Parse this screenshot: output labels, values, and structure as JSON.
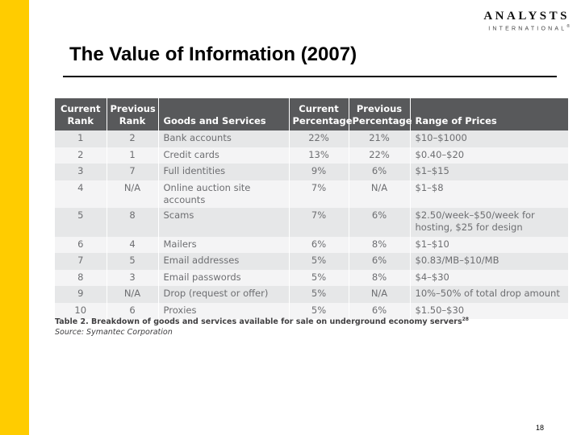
{
  "logo": {
    "main": "ANALYSTS",
    "sub": "INTERNATIONAL",
    "tm": "®"
  },
  "title": "The Value of Information (2007)",
  "table": {
    "headers": [
      "Current Rank",
      "Previous Rank",
      "Goods and Services",
      "Current Percentage",
      "Previous Percentage",
      "Range of Prices"
    ],
    "rows": [
      [
        "1",
        "2",
        "Bank accounts",
        "22%",
        "21%",
        "$10–$1000"
      ],
      [
        "2",
        "1",
        "Credit cards",
        "13%",
        "22%",
        "$0.40–$20"
      ],
      [
        "3",
        "7",
        "Full identities",
        "9%",
        "6%",
        "$1–$15"
      ],
      [
        "4",
        "N/A",
        "Online auction site accounts",
        "7%",
        "N/A",
        "$1–$8"
      ],
      [
        "5",
        "8",
        "Scams",
        "7%",
        "6%",
        "$2.50/week–$50/week for hosting, $25 for design"
      ],
      [
        "6",
        "4",
        "Mailers",
        "6%",
        "8%",
        "$1–$10"
      ],
      [
        "7",
        "5",
        "Email addresses",
        "5%",
        "6%",
        "$0.83/MB–$10/MB"
      ],
      [
        "8",
        "3",
        "Email passwords",
        "5%",
        "8%",
        "$4–$30"
      ],
      [
        "9",
        "N/A",
        "Drop (request or offer)",
        "5%",
        "N/A",
        "10%–50% of total drop amount"
      ],
      [
        "10",
        "6",
        "Proxies",
        "5%",
        "6%",
        "$1.50–$30"
      ]
    ]
  },
  "caption": "Table 2. Breakdown of goods and services available for sale on underground economy servers",
  "caption_ref": "28",
  "source": "Source: Symantec Corporation",
  "page_number": "18"
}
